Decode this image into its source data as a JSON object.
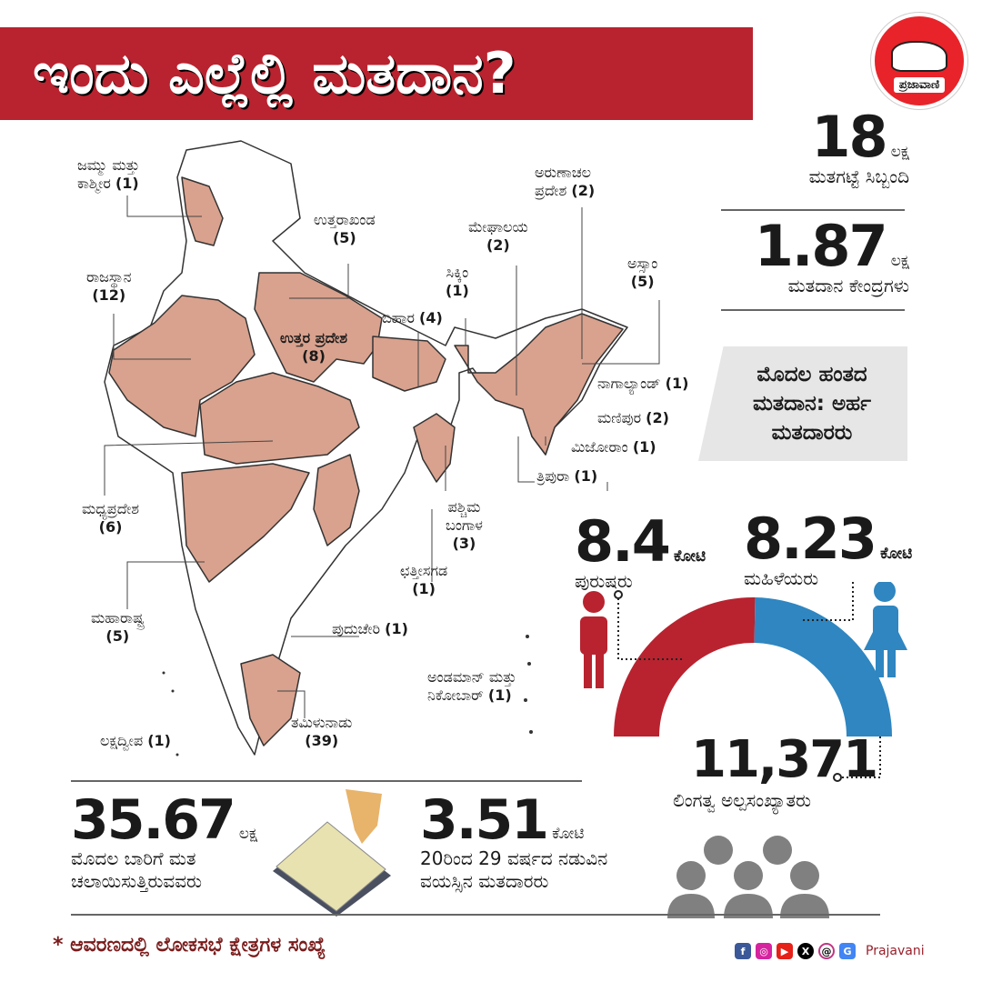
{
  "title": "ಇಂದು ಎಲ್ಲೆಲ್ಲಿ ಮತದಾನ?",
  "logo": {
    "text": "ಪ್ರಜಾವಾಣಿ"
  },
  "colors": {
    "title_bg": "#b8232f",
    "state_fill": "#d9a28e",
    "male": "#b8232f",
    "female": "#2f86c0",
    "icon_gray": "#808080"
  },
  "stats": {
    "staff": {
      "value": "18",
      "unit": "ಲಕ್ಷ",
      "label": "ಮತಗಟ್ಟೆ ಸಿಬ್ಬಂದಿ"
    },
    "booths": {
      "value": "1.87",
      "unit": "ಲಕ್ಷ",
      "label": "ಮತದಾನ ಕೇಂದ್ರಗಳು"
    },
    "phase_box": "ಮೊದಲ ಹಂತದ ಮತದಾನ: ಅರ್ಹ ಮತದಾರರು",
    "male": {
      "value": "8.4",
      "unit": "ಕೋಟಿ",
      "label": "ಪುರುಷರು",
      "icon": "male-person-icon"
    },
    "female": {
      "value": "8.23",
      "unit": "ಕೋಟಿ",
      "label": "ಮಹಿಳೆಯರು",
      "icon": "female-person-icon"
    },
    "third_gender": {
      "value": "11,371",
      "label": "ಲಿಂಗತ್ವ ಅಲ್ಪಸಂಖ್ಯಾತರು",
      "icon": "group-icon"
    },
    "first_time": {
      "value": "35.67",
      "unit": "ಲಕ್ಷ",
      "label1": "ಮೊದಲ ಬಾರಿಗೆ ಮತ",
      "label2": "ಚಲಾಯಿಸುತ್ತಿರುವವರು"
    },
    "young": {
      "value": "3.51",
      "unit": "ಕೋಟಿ",
      "label1": "20ರಿಂದ 29 ವರ್ಷದ ನಡುವಿನ",
      "label2": "ವಯಸ್ಸಿನ ಮತದಾರರು",
      "icon": "evm-voting-icon"
    }
  },
  "gender_split": {
    "male": 8.4,
    "female": 8.23,
    "third_gender": 0.0011371,
    "unit": "crore"
  },
  "states": [
    {
      "name": "ಜಮ್ಮು ಮತ್ತು",
      "name2": "ಕಾಶ್ಮೀರ",
      "seats": "(1)"
    },
    {
      "name": "ಉತ್ತರಾಖಂಡ",
      "seats": "(5)"
    },
    {
      "name": "ರಾಜಸ್ಥಾನ",
      "seats": "(12)"
    },
    {
      "name": "ಉತ್ತರ ಪ್ರದೇಶ",
      "seats": "(8)"
    },
    {
      "name": "ಬಿಹಾರ",
      "seats": "(4)"
    },
    {
      "name": "ಸಿಕ್ಕಿಂ",
      "seats": "(1)"
    },
    {
      "name": "ಮೇಘಾಲಯ",
      "seats": "(2)"
    },
    {
      "name": "ಅರುಣಾಚಲ",
      "name2": "ಪ್ರದೇಶ",
      "seats": "(2)"
    },
    {
      "name": "ಅಸ್ಸಾಂ",
      "seats": "(5)"
    },
    {
      "name": "ನಾಗಾಲ್ಯಾಂಡ್",
      "seats": "(1)"
    },
    {
      "name": "ಮಣಿಪುರ",
      "seats": "(2)"
    },
    {
      "name": "ಮಿಜೋರಾಂ",
      "seats": "(1)"
    },
    {
      "name": "ತ್ರಿಪುರಾ",
      "seats": "(1)"
    },
    {
      "name": "ಪಶ್ಚಿಮ",
      "name2": "ಬಂಗಾಳ",
      "seats": "(3)"
    },
    {
      "name": "ಮಧ್ಯಪ್ರದೇಶ",
      "seats": "(6)"
    },
    {
      "name": "ಛತ್ತೀಸಗಡ",
      "seats": "(1)"
    },
    {
      "name": "ಮಹಾರಾಷ್ಟ್ರ",
      "seats": "(5)"
    },
    {
      "name": "ಪುದುಚೇರಿ",
      "seats": "(1)"
    },
    {
      "name": "ಅಂಡಮಾನ್ ಮತ್ತು",
      "name2": "ನಿಕೋಬಾರ್",
      "seats": "(1)"
    },
    {
      "name": "ತಮಿಳುನಾಡು",
      "seats": "(39)"
    },
    {
      "name": "ಲಕ್ಷದ್ವೀಪ",
      "seats": "(1)"
    }
  ],
  "footnote": "* ಆವರಣದಲ್ಲಿ ಲೋಕಸಭೆ ಕ್ಷೇತ್ರಗಳ ಸಂಖ್ಯೆ",
  "social": {
    "icons": [
      "facebook-icon",
      "instagram-icon",
      "youtube-icon",
      "x-icon",
      "threads-icon",
      "google-news-icon"
    ],
    "brand": "Prajavani"
  }
}
